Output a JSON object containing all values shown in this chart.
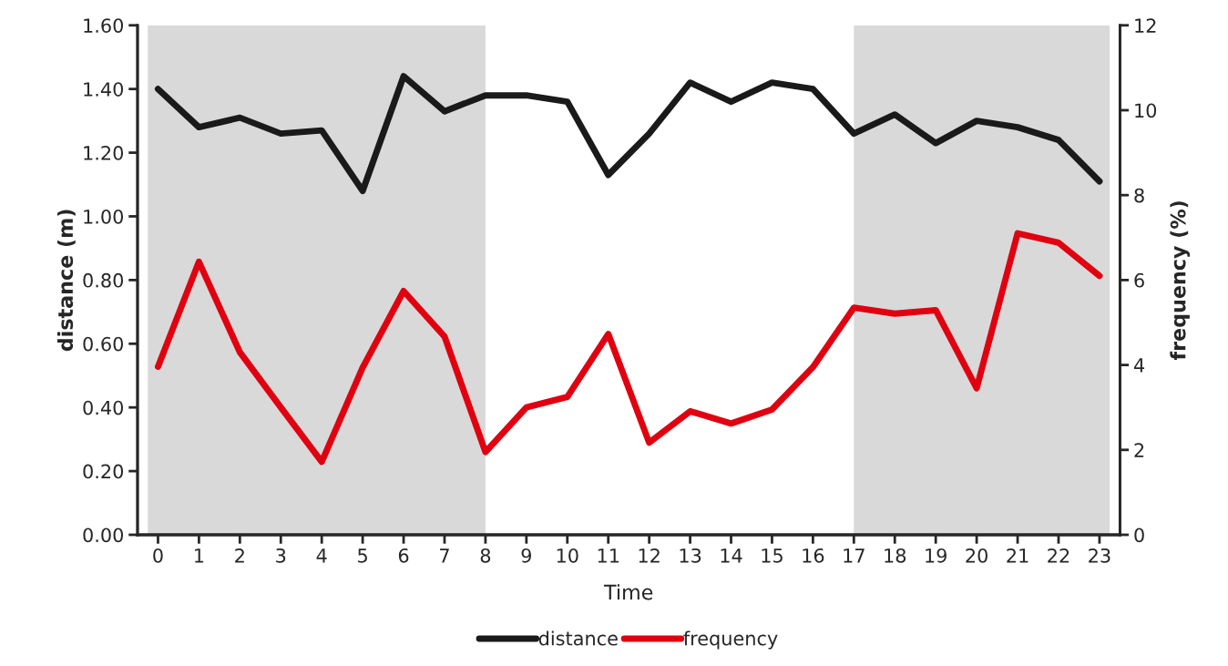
{
  "chart_data": {
    "type": "line",
    "xlabel": "Time",
    "ylabel": "distance (m)",
    "y2label": "frequency (%)",
    "x": [
      0,
      1,
      2,
      3,
      4,
      5,
      6,
      7,
      8,
      9,
      10,
      11,
      12,
      13,
      14,
      15,
      16,
      17,
      18,
      19,
      20,
      21,
      22,
      23
    ],
    "series": [
      {
        "name": "distance",
        "color": "#1a1a1a",
        "values": [
          1.4,
          1.28,
          1.31,
          1.26,
          1.27,
          1.08,
          1.44,
          1.33,
          1.38,
          1.38,
          1.36,
          1.13,
          1.26,
          1.42,
          1.36,
          1.42,
          1.4,
          1.26,
          1.32,
          1.23,
          1.3,
          1.28,
          1.24,
          1.11
        ]
      },
      {
        "name": "frequency",
        "color": "#e00010",
        "axis": "y2",
        "values": [
          3.96,
          6.43,
          4.3,
          3.0,
          1.72,
          3.94,
          5.74,
          4.67,
          1.95,
          3.0,
          3.25,
          4.73,
          2.17,
          2.91,
          2.62,
          2.95,
          3.95,
          5.35,
          5.21,
          5.29,
          3.45,
          7.1,
          6.88,
          6.1
        ]
      }
    ],
    "xlim": [
      -0.5,
      23.5
    ],
    "xticks": [
      0,
      1,
      2,
      3,
      4,
      5,
      6,
      7,
      8,
      9,
      10,
      11,
      12,
      13,
      14,
      15,
      16,
      17,
      18,
      19,
      20,
      21,
      22,
      23
    ],
    "ylim": [
      0,
      1.6
    ],
    "yticks": [
      {
        "value": 0,
        "label": "0.00"
      },
      {
        "value": 0.2,
        "label": "0.20"
      },
      {
        "value": 0.4,
        "label": "0.40"
      },
      {
        "value": 0.6,
        "label": "0.60"
      },
      {
        "value": 0.8,
        "label": "0.80"
      },
      {
        "value": 1.0,
        "label": "1.00"
      },
      {
        "value": 1.2,
        "label": "1.20"
      },
      {
        "value": 1.4,
        "label": "1.40"
      },
      {
        "value": 1.6,
        "label": "1.60"
      }
    ],
    "y2lim": [
      0,
      12
    ],
    "y2ticks": [
      0,
      2,
      4,
      6,
      8,
      10,
      12
    ],
    "bands": [
      {
        "axis": "x",
        "from": -0.25,
        "to": 8,
        "color": "#d9d9d9"
      },
      {
        "axis": "x",
        "from": 17,
        "to": 23.25,
        "color": "#d9d9d9"
      }
    ],
    "grid": false,
    "legend": "bottom",
    "marker": "none",
    "line_style": "solid"
  }
}
